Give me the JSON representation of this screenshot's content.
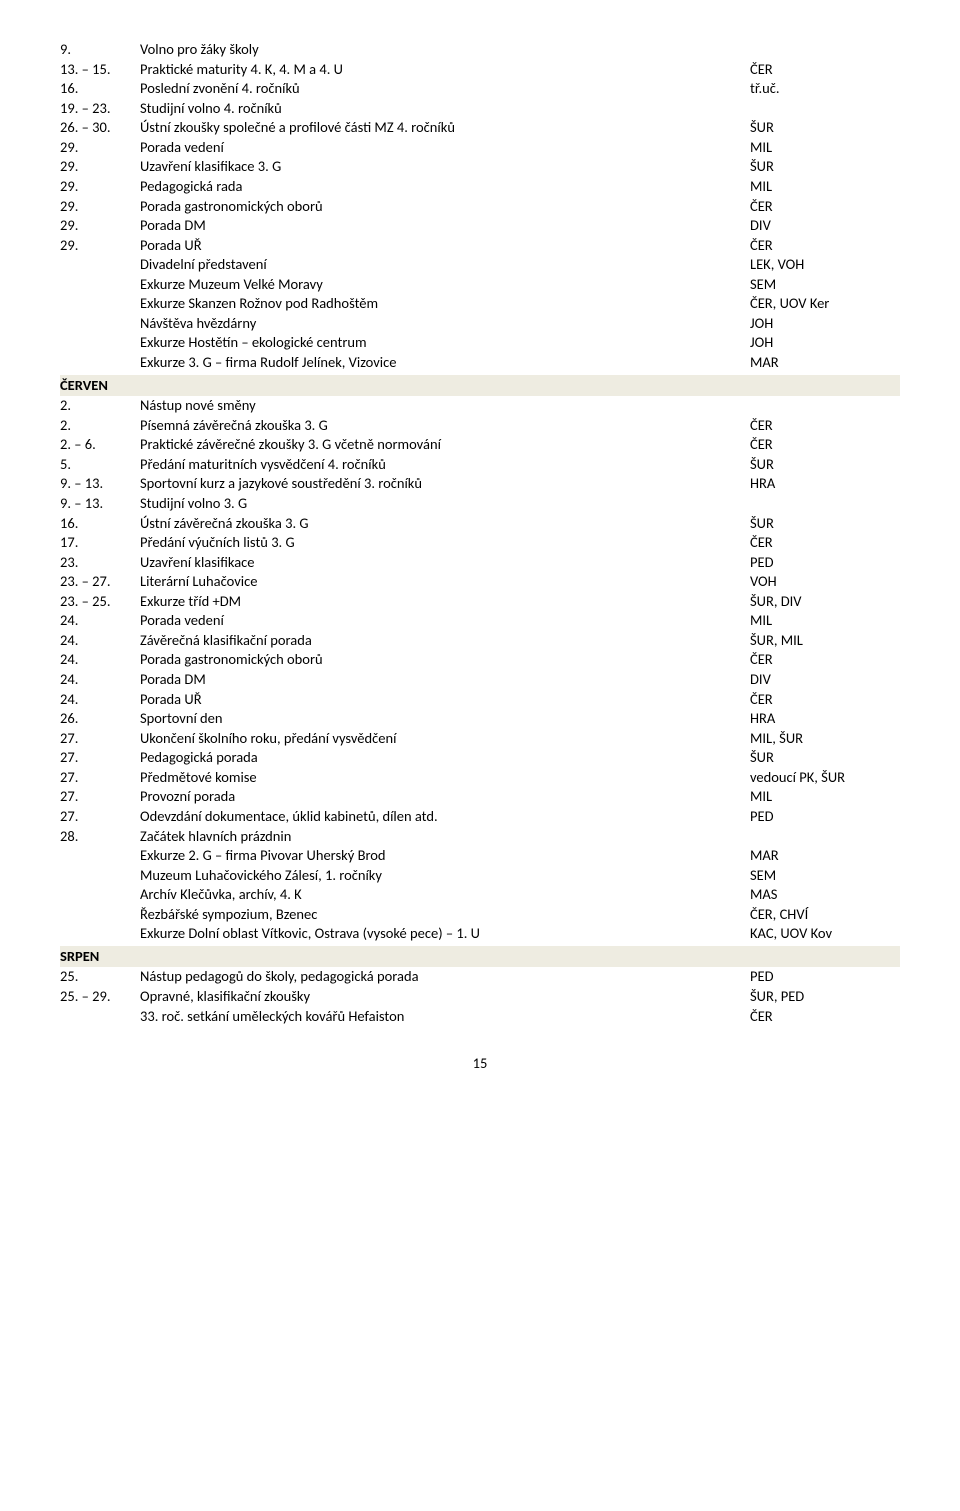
{
  "block1": [
    {
      "n": "9.",
      "t": "Volno pro žáky školy",
      "c": ""
    },
    {
      "n": "13. – 15.",
      "t": "Praktické maturity 4. K, 4. M a 4. U",
      "c": "ČER"
    },
    {
      "n": "16.",
      "t": "Poslední zvonění 4. ročníků",
      "c": "tř.uč."
    },
    {
      "n": "19. – 23.",
      "t": "Studijní volno 4. ročníků",
      "c": ""
    },
    {
      "n": "26. – 30.",
      "t": "Ústní zkoušky společné a profilové části MZ 4. ročníků",
      "c": "ŠUR"
    },
    {
      "n": "29.",
      "t": "Porada vedení",
      "c": "MIL"
    },
    {
      "n": "29.",
      "t": "Uzavření klasifikace 3. G",
      "c": "ŠUR"
    },
    {
      "n": "29.",
      "t": "Pedagogická rada",
      "c": "MIL"
    },
    {
      "n": "29.",
      "t": "Porada gastronomických oborů",
      "c": "ČER"
    },
    {
      "n": "29.",
      "t": "Porada DM",
      "c": "DIV"
    },
    {
      "n": "29.",
      "t": "Porada UŘ",
      "c": "ČER"
    },
    {
      "n": "",
      "t": "Divadelní představení",
      "c": "LEK, VOH"
    },
    {
      "n": "",
      "t": "Exkurze Muzeum Velké Moravy",
      "c": "SEM"
    },
    {
      "n": "",
      "t": "Exkurze Skanzen Rožnov pod Radhoštěm",
      "c": "ČER, UOV Ker"
    },
    {
      "n": "",
      "t": "Návštěva hvězdárny",
      "c": "JOH"
    },
    {
      "n": "",
      "t": "Exkurze Hostětín – ekologické centrum",
      "c": "JOH"
    },
    {
      "n": "",
      "t": "Exkurze 3. G – firma Rudolf Jelínek, Vizovice",
      "c": "MAR"
    }
  ],
  "section_cerven": "ČERVEN",
  "block2": [
    {
      "n": "2.",
      "t": "Nástup nové směny",
      "c": ""
    },
    {
      "n": "2.",
      "t": "Písemná závěrečná zkouška 3. G",
      "c": "ČER"
    },
    {
      "n": "2. – 6.",
      "t": "Praktické závěrečné zkoušky 3. G včetně normování",
      "c": "ČER"
    },
    {
      "n": "5.",
      "t": "Předání maturitních vysvědčení 4. ročníků",
      "c": "ŠUR"
    },
    {
      "n": "9. – 13.",
      "t": "Sportovní kurz a jazykové soustředění 3. ročníků",
      "c": "HRA"
    },
    {
      "n": "9. – 13.",
      "t": "Studijní volno 3. G",
      "c": ""
    },
    {
      "n": "16.",
      "t": "Ústní závěrečná zkouška 3. G",
      "c": "ŠUR"
    },
    {
      "n": "17.",
      "t": "Předání výučních listů 3. G",
      "c": "ČER"
    },
    {
      "n": "23.",
      "t": "Uzavření klasifikace",
      "c": "PED"
    },
    {
      "n": "23. – 27.",
      "t": "Literární Luhačovice",
      "c": "VOH"
    },
    {
      "n": "23. – 25.",
      "t": "Exkurze tříd +DM",
      "c": "ŠUR, DIV"
    },
    {
      "n": "24.",
      "t": "Porada vedení",
      "c": "MIL"
    },
    {
      "n": "24.",
      "t": "Závěrečná klasifikační porada",
      "c": "ŠUR, MIL"
    },
    {
      "n": "24.",
      "t": "Porada gastronomických oborů",
      "c": "ČER"
    },
    {
      "n": "24.",
      "t": "Porada DM",
      "c": "DIV"
    },
    {
      "n": "24.",
      "t": "Porada UŘ",
      "c": "ČER"
    },
    {
      "n": "26.",
      "t": "Sportovní den",
      "c": "HRA"
    },
    {
      "n": "27.",
      "t": "Ukončení školního roku, předání vysvědčení",
      "c": "MIL, ŠUR"
    },
    {
      "n": "27.",
      "t": "Pedagogická porada",
      "c": "ŠUR"
    },
    {
      "n": "27.",
      "t": "Předmětové komise",
      "c": "vedoucí PK, ŠUR"
    },
    {
      "n": "27.",
      "t": "Provozní porada",
      "c": "MIL"
    },
    {
      "n": "27.",
      "t": "Odevzdání dokumentace, úklid kabinetů, dílen atd.",
      "c": "PED"
    },
    {
      "n": "28.",
      "t": "Začátek hlavních prázdnin",
      "c": ""
    },
    {
      "n": "",
      "t": "Exkurze 2. G – firma Pivovar Uherský Brod",
      "c": "MAR"
    },
    {
      "n": "",
      "t": "Muzeum Luhačovického Zálesí, 1. ročníky",
      "c": "SEM"
    },
    {
      "n": "",
      "t": "Archív Klečůvka, archív, 4. K",
      "c": "MAS"
    },
    {
      "n": "",
      "t": "Řezbářské sympozium, Bzenec",
      "c": "ČER, CHVÍ"
    },
    {
      "n": "",
      "t": "Exkurze Dolní oblast Vítkovic, Ostrava (vysoké pece) – 1. U",
      "c": "KAC, UOV Kov"
    }
  ],
  "section_srpen": "SRPEN",
  "block3": [
    {
      "n": "25.",
      "t": "Nástup pedagogů do školy, pedagogická porada",
      "c": "PED"
    },
    {
      "n": "25. – 29.",
      "t": "Opravné, klasifikační zkoušky",
      "c": "ŠUR, PED"
    },
    {
      "n": "",
      "t": "33. roč. setkání uměleckých kovářů Hefaiston",
      "c": "ČER"
    }
  ],
  "pagenum": "15"
}
